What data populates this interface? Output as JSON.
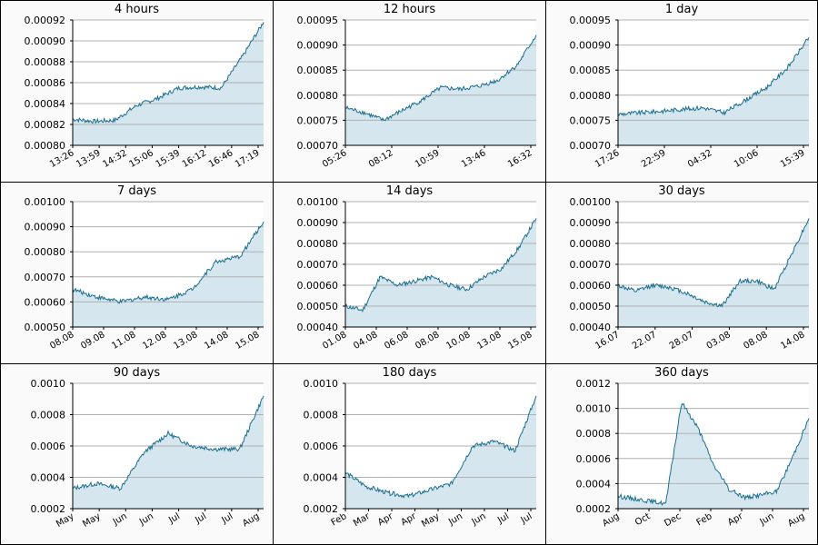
{
  "chart_data": [
    {
      "type": "area",
      "title": "4 hours",
      "xlabel": "",
      "ylabel": "",
      "ylim": [
        0.0008,
        0.00092
      ],
      "yticks": [
        "0.00080",
        "0.00082",
        "0.00084",
        "0.00086",
        "0.00088",
        "0.00090",
        "0.00092"
      ],
      "xticks": [
        "13:26",
        "13:59",
        "14:32",
        "15:06",
        "15:39",
        "16:12",
        "16:46",
        "17:19"
      ],
      "x": [
        "13:26",
        "13:59",
        "14:32",
        "15:06",
        "15:39",
        "16:12",
        "16:46",
        "17:00",
        "17:19",
        "17:27"
      ],
      "values": [
        0.000825,
        0.000823,
        0.000824,
        0.000838,
        0.000845,
        0.000855,
        0.000856,
        0.000855,
        0.000885,
        0.000918
      ],
      "grid": true,
      "color": "#1a6e8f",
      "fill": "#d5e6ee"
    },
    {
      "type": "area",
      "title": "12 hours",
      "xlabel": "",
      "ylabel": "",
      "ylim": [
        0.0007,
        0.00095
      ],
      "yticks": [
        "0.00070",
        "0.00075",
        "0.00080",
        "0.00085",
        "0.00090",
        "0.00095"
      ],
      "xticks": [
        "05:26",
        "08:12",
        "10:59",
        "13:46",
        "16:32"
      ],
      "x": [
        "05:26",
        "06:00",
        "07:00",
        "08:12",
        "09:30",
        "10:59",
        "12:00",
        "13:46",
        "15:00",
        "16:32",
        "17:26"
      ],
      "values": [
        0.000775,
        0.000765,
        0.00075,
        0.00077,
        0.00079,
        0.000815,
        0.000812,
        0.000818,
        0.00083,
        0.00086,
        0.00092
      ],
      "grid": true,
      "color": "#1a6e8f",
      "fill": "#d5e6ee"
    },
    {
      "type": "area",
      "title": "1 day",
      "xlabel": "",
      "ylabel": "",
      "ylim": [
        0.0007,
        0.00095
      ],
      "yticks": [
        "0.00070",
        "0.00075",
        "0.00080",
        "0.00085",
        "0.00090",
        "0.00095"
      ],
      "xticks": [
        "17:26",
        "22:59",
        "04:32",
        "10:06",
        "15:39"
      ],
      "x": [
        "17:26",
        "20:00",
        "22:59",
        "02:00",
        "04:32",
        "07:00",
        "10:06",
        "13:00",
        "15:39",
        "17:26"
      ],
      "values": [
        0.000762,
        0.000765,
        0.000768,
        0.000772,
        0.000775,
        0.000765,
        0.00079,
        0.000815,
        0.000855,
        0.000915
      ],
      "grid": true,
      "color": "#1a6e8f",
      "fill": "#d5e6ee"
    },
    {
      "type": "area",
      "title": "7 days",
      "xlabel": "",
      "ylabel": "",
      "ylim": [
        0.0005,
        0.001
      ],
      "yticks": [
        "0.00050",
        "0.00060",
        "0.00070",
        "0.00080",
        "0.00090",
        "0.00100"
      ],
      "xticks": [
        "08.08",
        "09.08",
        "11.08",
        "12.08",
        "13.08",
        "14.08",
        "15.08"
      ],
      "x": [
        "08.08",
        "09.08",
        "10.08",
        "11.08",
        "12.08",
        "13.08",
        "14.08",
        "15.08",
        "15.08 17:26"
      ],
      "values": [
        0.00065,
        0.00062,
        0.0006,
        0.00062,
        0.00061,
        0.00065,
        0.00076,
        0.00078,
        0.00092
      ],
      "grid": true,
      "color": "#1a6e8f",
      "fill": "#d5e6ee"
    },
    {
      "type": "area",
      "title": "14 days",
      "xlabel": "",
      "ylabel": "",
      "ylim": [
        0.0004,
        0.001
      ],
      "yticks": [
        "0.00040",
        "0.00050",
        "0.00060",
        "0.00070",
        "0.00080",
        "0.00090",
        "0.00100"
      ],
      "xticks": [
        "01.08",
        "04.08",
        "06.08",
        "08.08",
        "10.08",
        "13.08",
        "15.08"
      ],
      "x": [
        "01.08",
        "02.08",
        "04.08",
        "05.08",
        "06.08",
        "08.08",
        "09.08",
        "10.08",
        "12.08",
        "13.08",
        "14.08",
        "15.08"
      ],
      "values": [
        0.0005,
        0.00048,
        0.00064,
        0.0006,
        0.00062,
        0.00064,
        0.0006,
        0.00058,
        0.00064,
        0.00068,
        0.00078,
        0.00092
      ],
      "grid": true,
      "color": "#1a6e8f",
      "fill": "#d5e6ee"
    },
    {
      "type": "area",
      "title": "30 days",
      "xlabel": "",
      "ylabel": "",
      "ylim": [
        0.0004,
        0.001
      ],
      "yticks": [
        "0.00040",
        "0.00050",
        "0.00060",
        "0.00070",
        "0.00080",
        "0.00090",
        "0.00100"
      ],
      "xticks": [
        "16.07",
        "22.07",
        "28.07",
        "03.08",
        "08.08",
        "14.08"
      ],
      "x": [
        "16.07",
        "19.07",
        "22.07",
        "25.07",
        "28.07",
        "31.07",
        "03.08",
        "05.08",
        "08.08",
        "11.08",
        "14.08",
        "15.08"
      ],
      "values": [
        0.0006,
        0.00057,
        0.0006,
        0.00059,
        0.00056,
        0.00052,
        0.0005,
        0.00062,
        0.00062,
        0.00058,
        0.00075,
        0.00092
      ],
      "grid": true,
      "color": "#1a6e8f",
      "fill": "#d5e6ee"
    },
    {
      "type": "area",
      "title": "90 days",
      "xlabel": "",
      "ylabel": "",
      "ylim": [
        0.0002,
        0.001
      ],
      "yticks": [
        "0.0002",
        "0.0004",
        "0.0006",
        "0.0008",
        "0.0010"
      ],
      "xticks": [
        "May",
        "May",
        "Jun",
        "Jun",
        "Jul",
        "Jul",
        "Jul",
        "Aug"
      ],
      "x": [
        "May",
        "May",
        "Jun",
        "Jun",
        "Jul",
        "Jul",
        "Jul",
        "Aug",
        "Aug"
      ],
      "values": [
        0.00033,
        0.00036,
        0.00033,
        0.00056,
        0.00068,
        0.0006,
        0.00058,
        0.00058,
        0.00092
      ],
      "grid": true,
      "color": "#1a6e8f",
      "fill": "#d5e6ee"
    },
    {
      "type": "area",
      "title": "180 days",
      "xlabel": "",
      "ylabel": "",
      "ylim": [
        0.0002,
        0.001
      ],
      "yticks": [
        "0.0002",
        "0.0004",
        "0.0006",
        "0.0008",
        "0.0010"
      ],
      "xticks": [
        "Feb",
        "Mar",
        "Apr",
        "Apr",
        "May",
        "Jun",
        "Jun",
        "Jul",
        "Jul"
      ],
      "x": [
        "Feb",
        "Mar",
        "Apr",
        "Apr",
        "May",
        "Jun",
        "Jun",
        "Jul",
        "Jul",
        "Aug"
      ],
      "values": [
        0.00043,
        0.00034,
        0.0003,
        0.00028,
        0.00032,
        0.00036,
        0.0006,
        0.00063,
        0.00057,
        0.00092
      ],
      "grid": true,
      "color": "#1a6e8f",
      "fill": "#d5e6ee"
    },
    {
      "type": "area",
      "title": "360 days",
      "xlabel": "",
      "ylabel": "",
      "ylim": [
        0.0002,
        0.0012
      ],
      "yticks": [
        "0.0002",
        "0.0004",
        "0.0006",
        "0.0008",
        "0.0010",
        "0.0012"
      ],
      "xticks": [
        "Aug",
        "Oct",
        "Dec",
        "Feb",
        "Apr",
        "Jun",
        "Aug"
      ],
      "x": [
        "Aug",
        "Sep",
        "Oct",
        "Nov",
        "Dec",
        "Jan",
        "Feb",
        "Mar",
        "Apr",
        "May",
        "Jun",
        "Jul",
        "Aug"
      ],
      "values": [
        0.0003,
        0.00028,
        0.00026,
        0.00024,
        0.00105,
        0.00085,
        0.00055,
        0.00035,
        0.00029,
        0.00031,
        0.00034,
        0.00062,
        0.00092
      ],
      "grid": true,
      "color": "#1a6e8f",
      "fill": "#d5e6ee"
    }
  ]
}
